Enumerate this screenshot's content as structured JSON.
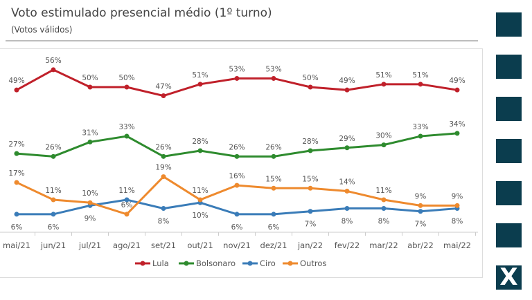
{
  "chart_data": {
    "type": "line",
    "title": "Voto estimulado presencial médio (1º turno)",
    "subtitle": "(Votos válidos)",
    "xlabel": "",
    "ylabel": "",
    "categories": [
      "mai/21",
      "jun/21",
      "jul/21",
      "ago/21",
      "set/21",
      "out/21",
      "nov/21",
      "dez/21",
      "jan/22",
      "fev/22",
      "mar/22",
      "abr/22",
      "mai/22"
    ],
    "legend_position": "bottom",
    "grid": false,
    "series": [
      {
        "name": "Lula",
        "color": "#c0202a",
        "label_side": "above",
        "values": [
          49,
          56,
          50,
          50,
          47,
          51,
          53,
          53,
          50,
          49,
          51,
          51,
          49
        ]
      },
      {
        "name": "Bolsonaro",
        "color": "#2e8b2e",
        "label_side": "above",
        "values": [
          27,
          26,
          31,
          33,
          26,
          28,
          26,
          26,
          28,
          29,
          30,
          33,
          34
        ]
      },
      {
        "name": "Ciro",
        "color": "#3a7cb8",
        "label_side": "below",
        "values": [
          6,
          6,
          9,
          11,
          8,
          10,
          6,
          6,
          7,
          8,
          8,
          7,
          8
        ]
      },
      {
        "name": "Outros",
        "color": "#ee8a2e",
        "label_side": "above",
        "values": [
          17,
          11,
          10,
          6,
          19,
          11,
          16,
          15,
          15,
          14,
          11,
          9,
          9
        ]
      }
    ]
  },
  "sidebar": {
    "logo_text": "X"
  }
}
